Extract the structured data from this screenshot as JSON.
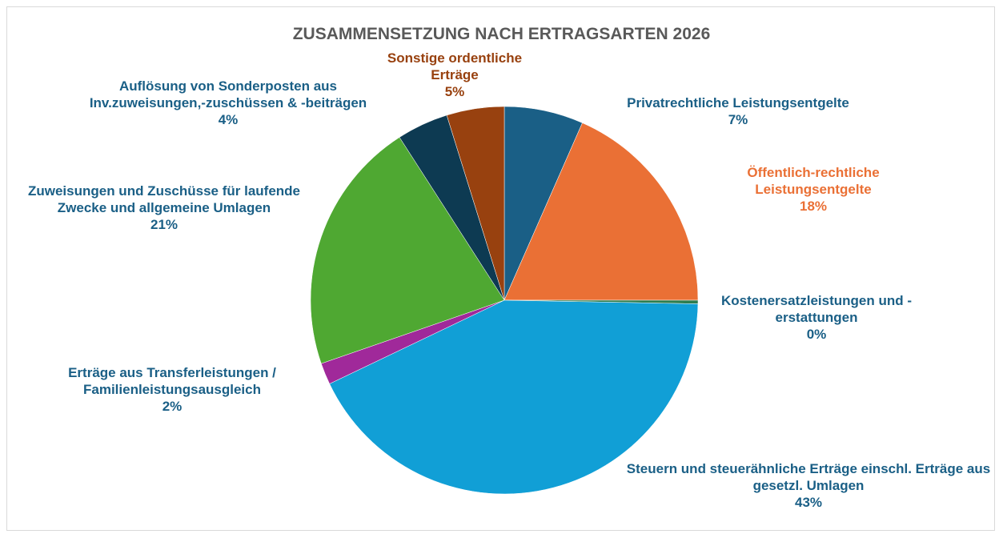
{
  "chart_data": {
    "type": "pie",
    "title": "ZUSAMMENSETZUNG NACH ERTRAGSARTEN 2026",
    "categories": [
      "Privatrechtliche Leistungsentgelte",
      "Öffentlich-rechtliche Leistungsentgelte",
      "Kostenersatzleistungen und -erstattungen",
      "Steuern und steuerähnliche Erträge einschl. Erträge aus gesetzl. Umlagen",
      "Erträge aus Transferleistungen / Familienleistungsausgleich",
      "Zuweisungen und Zuschüsse für laufende Zwecke und allgemeine Umlagen",
      "Auflösung von Sonderposten aus Inv.zuweisungen,-zuschüssen & -beiträgen",
      "Sonstige ordentliche Erträge"
    ],
    "values": [
      6.6,
      18.4,
      0.3,
      42.6,
      1.8,
      21.2,
      4.3,
      4.8
    ],
    "value_labels": [
      "7%",
      "18%",
      "0%",
      "43%",
      "2%",
      "21%",
      "4%",
      "5%"
    ],
    "colors": [
      "#1a5f86",
      "#ea7035",
      "#2e7d4f",
      "#119fd6",
      "#a0299a",
      "#4fa832",
      "#0d3a52",
      "#98410f"
    ],
    "label_colors": [
      "#1a5f86",
      "#ea7035",
      "#1a5f86",
      "#1a5f86",
      "#1a5f86",
      "#1a5f86",
      "#1a5f86",
      "#98410f"
    ]
  }
}
